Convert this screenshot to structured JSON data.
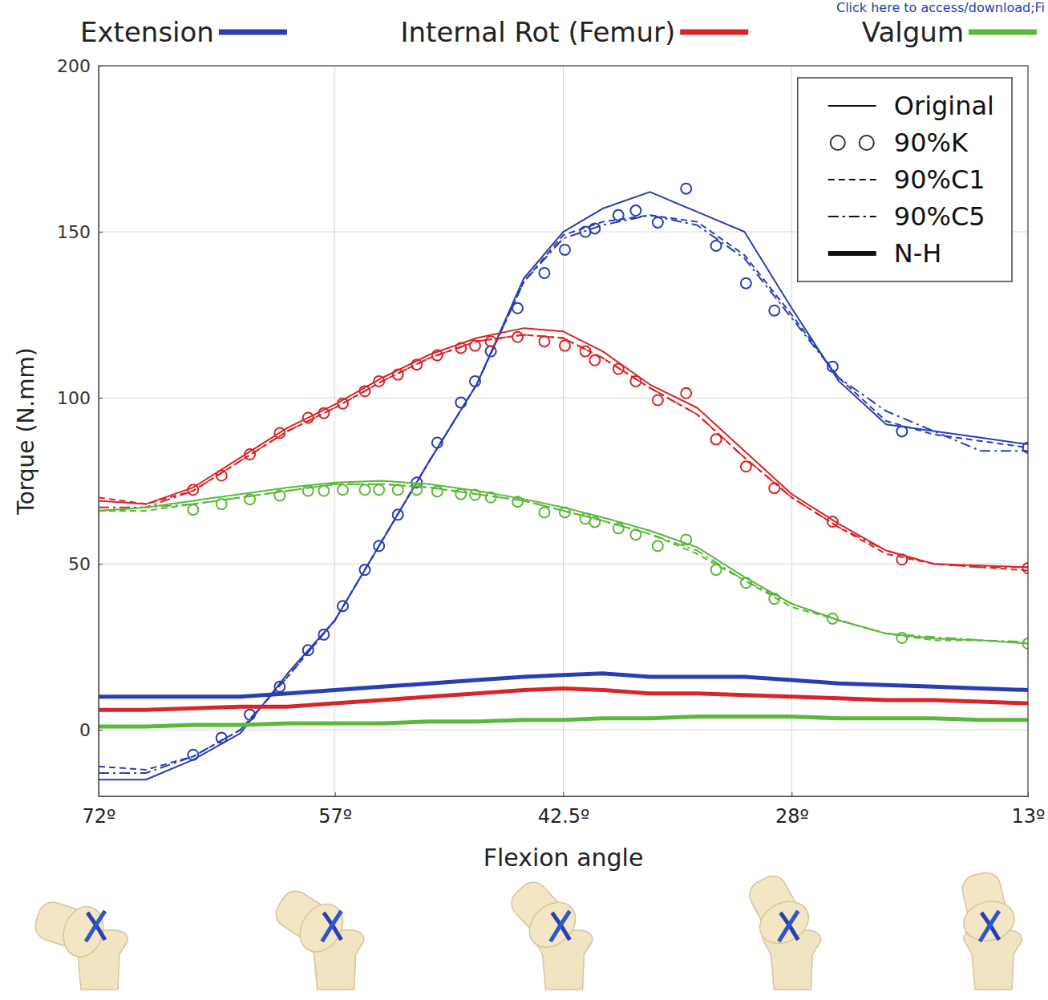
{
  "chart_data": {
    "type": "line",
    "annotation": "Click here to access/download;Fi",
    "x_label": "Flexion angle",
    "y_label": "Torque (N.mm)",
    "xlim": [
      72,
      13
    ],
    "xticks": [
      {
        "value": 72,
        "label": "72º"
      },
      {
        "value": 57,
        "label": "57º"
      },
      {
        "value": 42.5,
        "label": "42.5º"
      },
      {
        "value": 28,
        "label": "28º"
      },
      {
        "value": 13,
        "label": "13º"
      }
    ],
    "ylim": [
      -20,
      200
    ],
    "yticks": [
      0,
      50,
      100,
      150,
      200
    ],
    "grid": true,
    "legend": "top-right",
    "x": [
      72,
      69,
      66,
      63,
      60,
      57,
      54,
      51,
      48,
      45,
      42.5,
      40,
      37,
      34,
      31,
      28,
      25,
      22,
      19,
      16,
      13
    ],
    "series": [
      {
        "name": "Original",
        "group": "Extension",
        "color": "#2a3eb1",
        "line_style": "solid",
        "marker": "none",
        "values": [
          -15,
          -15,
          -9,
          -1,
          17,
          33,
          57,
          81,
          104,
          136,
          150,
          157,
          162,
          156,
          150,
          127,
          105,
          92,
          90,
          88,
          86
        ]
      },
      {
        "name": "90%K",
        "group": "Extension",
        "color": "#2a3eb1",
        "line_style": "none",
        "marker": "circle",
        "x": [
          66,
          64.2,
          62.4,
          60.5,
          58.7,
          57.7,
          56.5,
          55.1,
          54.2,
          53,
          51.8,
          50.5,
          49,
          48.1,
          47.1,
          45.4,
          43.7,
          42.4,
          41.1,
          40.5,
          39,
          37.9,
          36.5,
          34.7,
          32.8,
          30.9,
          29.1,
          25.4,
          21,
          13
        ],
        "values": [
          -7.5,
          -2.4,
          4.6,
          13,
          24,
          28.7,
          37.3,
          48.2,
          55.4,
          64.8,
          74.5,
          86.5,
          98.6,
          105,
          114,
          127,
          137.6,
          144.6,
          150,
          151,
          155,
          156.4,
          152.8,
          163,
          145.8,
          134.5,
          126.3,
          109.4,
          89.9,
          85
        ]
      },
      {
        "name": "90%C1",
        "group": "Extension",
        "color": "#2a3eb1",
        "line_style": "dashed",
        "marker": "none",
        "values": [
          -11,
          -12,
          -8,
          0,
          16,
          33,
          57,
          81,
          104,
          135,
          149,
          153,
          155,
          153,
          143,
          125,
          106,
          93,
          89,
          87,
          85
        ]
      },
      {
        "name": "90%C5",
        "group": "Extension",
        "color": "#2a3eb1",
        "line_style": "dashdot",
        "marker": "none",
        "values": [
          -13,
          -13,
          -8,
          0,
          16,
          33,
          57,
          81,
          104,
          135,
          148,
          152,
          155,
          152,
          142,
          124,
          106,
          96,
          90,
          84,
          84
        ]
      },
      {
        "name": "N-H",
        "group": "Extension",
        "color": "#2a3eb1",
        "line_style": "thick",
        "marker": "none",
        "values": [
          10,
          10,
          10,
          10,
          11,
          12,
          13,
          14,
          15,
          16,
          16.5,
          17,
          16,
          16,
          16,
          15,
          14,
          13.5,
          13,
          12.5,
          12
        ]
      },
      {
        "name": "Original",
        "group": "Internal Rot (Femur)",
        "color": "#d7262a",
        "line_style": "solid",
        "marker": "none",
        "values": [
          69,
          68,
          73,
          82,
          91,
          98,
          106,
          113,
          118,
          121,
          120,
          114,
          104,
          97,
          84,
          71,
          62,
          54,
          50,
          49.5,
          49
        ]
      },
      {
        "name": "90%K",
        "group": "Internal Rot (Femur)",
        "color": "#d7262a",
        "line_style": "none",
        "marker": "circle",
        "x": [
          66,
          64.2,
          62.4,
          60.5,
          58.7,
          57.7,
          56.5,
          55.1,
          54.2,
          53,
          51.8,
          50.5,
          49,
          48.1,
          47.1,
          45.4,
          43.7,
          42.4,
          41.1,
          40.5,
          39,
          37.9,
          36.5,
          34.7,
          32.8,
          30.9,
          29.1,
          25.4,
          21,
          13
        ],
        "values": [
          72.3,
          76.6,
          83,
          89.4,
          94,
          95.4,
          98.3,
          102,
          105,
          107,
          110,
          112.8,
          115,
          115.7,
          117,
          118.3,
          117,
          115.7,
          114,
          111.3,
          108.7,
          105,
          99.3,
          101.4,
          87.5,
          79.3,
          72.8,
          62.7,
          51.3,
          48.7
        ]
      },
      {
        "name": "90%C1",
        "group": "Internal Rot (Femur)",
        "color": "#d7262a",
        "line_style": "dashed",
        "marker": "none",
        "values": [
          70,
          68,
          72,
          81,
          90,
          97,
          105,
          112,
          117,
          119,
          118,
          112,
          103,
          95,
          82,
          70,
          61,
          53,
          50,
          49,
          48
        ]
      },
      {
        "name": "90%C5",
        "group": "Internal Rot (Femur)",
        "color": "#d7262a",
        "line_style": "dashdot",
        "marker": "none",
        "values": [
          67,
          67,
          72,
          81,
          90,
          97,
          105,
          112,
          117,
          119,
          118,
          112,
          103,
          95,
          82,
          70,
          61,
          54,
          50,
          49,
          49
        ]
      },
      {
        "name": "N-H",
        "group": "Internal Rot (Femur)",
        "color": "#d7262a",
        "line_style": "thick",
        "marker": "none",
        "values": [
          6,
          6,
          6.5,
          7,
          7,
          8,
          9,
          10,
          11,
          12,
          12.5,
          12,
          11,
          11,
          10.5,
          10,
          9.5,
          9,
          9,
          8.5,
          8
        ]
      },
      {
        "name": "Original",
        "group": "Valgum",
        "color": "#5cb83b",
        "line_style": "solid",
        "marker": "none",
        "values": [
          66,
          67,
          69,
          71,
          73,
          74.5,
          75,
          74,
          72,
          69.5,
          67,
          64,
          60,
          55,
          46,
          38,
          33,
          29,
          27.5,
          27,
          26
        ]
      },
      {
        "name": "90%K",
        "group": "Valgum",
        "color": "#5cb83b",
        "line_style": "none",
        "marker": "circle",
        "x": [
          66,
          64.2,
          62.4,
          60.5,
          58.7,
          57.7,
          56.5,
          55.1,
          54.2,
          53,
          51.8,
          50.5,
          49,
          48.1,
          47.1,
          45.4,
          43.7,
          42.4,
          41.1,
          40.5,
          39,
          37.9,
          36.5,
          34.7,
          32.8,
          30.9,
          29.1,
          25.4,
          21,
          13
        ],
        "values": [
          66.3,
          68,
          69.4,
          70.6,
          72,
          72,
          72.3,
          72.3,
          72.3,
          72.3,
          72.3,
          71.8,
          71,
          70.8,
          70,
          68.7,
          65.5,
          65.5,
          63.6,
          62.6,
          60.7,
          58.8,
          55.4,
          57.3,
          48.2,
          44.3,
          39.5,
          33.5,
          27.7,
          26
        ]
      },
      {
        "name": "90%C1",
        "group": "Valgum",
        "color": "#5cb83b",
        "line_style": "dashed",
        "marker": "none",
        "values": [
          66,
          66,
          68,
          70,
          72,
          74,
          74,
          73,
          71,
          69,
          66,
          63,
          59,
          53,
          45,
          37,
          33,
          29,
          27,
          27,
          26
        ]
      },
      {
        "name": "90%C5",
        "group": "Valgum",
        "color": "#5cb83b",
        "line_style": "dashdot",
        "marker": "none",
        "values": [
          66,
          67,
          68,
          70,
          72,
          74,
          74,
          73,
          71,
          69,
          66,
          63,
          59,
          54,
          45,
          38,
          33,
          29,
          28,
          27,
          26.5
        ]
      },
      {
        "name": "N-H",
        "group": "Valgum",
        "color": "#5cb83b",
        "line_style": "thick",
        "marker": "none",
        "values": [
          1,
          1,
          1.5,
          1.5,
          2,
          2,
          2,
          2.5,
          2.5,
          3,
          3,
          3.5,
          3.5,
          4,
          4,
          4,
          3.5,
          3.5,
          3.5,
          3,
          3
        ]
      }
    ]
  }
}
